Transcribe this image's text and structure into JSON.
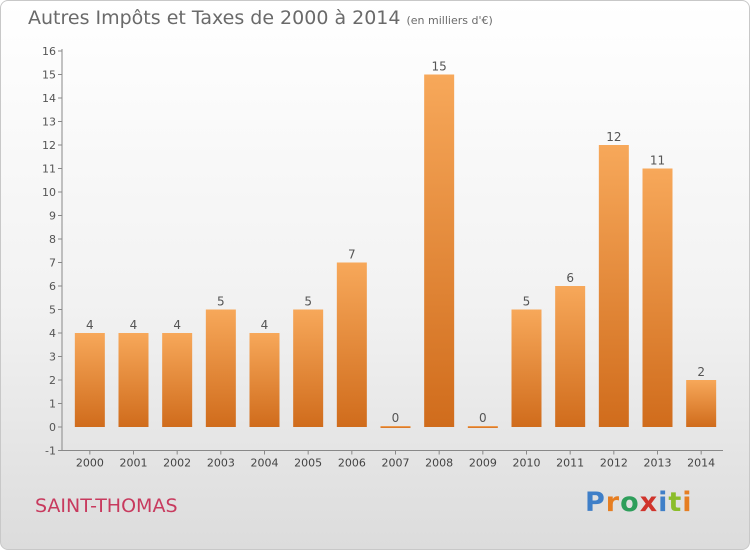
{
  "title": "Autres Impôts et Taxes de 2000 à 2014",
  "unit": "(en milliers d'€)",
  "commune": "SAINT-THOMAS",
  "logo": [
    "P",
    "r",
    "o",
    "x",
    "i",
    "t",
    "i"
  ],
  "colors": {
    "bar_top": "#f7a85a",
    "bar_bottom": "#d06c1c",
    "title": "#6a6a6a",
    "commune": "#c83a5e"
  },
  "chart_data": {
    "type": "bar",
    "categories": [
      "2000",
      "2001",
      "2002",
      "2003",
      "2004",
      "2005",
      "2006",
      "2007",
      "2008",
      "2009",
      "2010",
      "2011",
      "2012",
      "2013",
      "2014"
    ],
    "values": [
      4,
      4,
      4,
      5,
      4,
      5,
      7,
      0,
      15,
      0,
      5,
      6,
      12,
      11,
      2
    ],
    "ylim": [
      -1,
      16
    ],
    "yticks": [
      -1,
      0,
      1,
      2,
      3,
      4,
      5,
      6,
      7,
      8,
      9,
      10,
      11,
      12,
      13,
      14,
      15,
      16
    ],
    "grid": false,
    "data_labels": true
  }
}
